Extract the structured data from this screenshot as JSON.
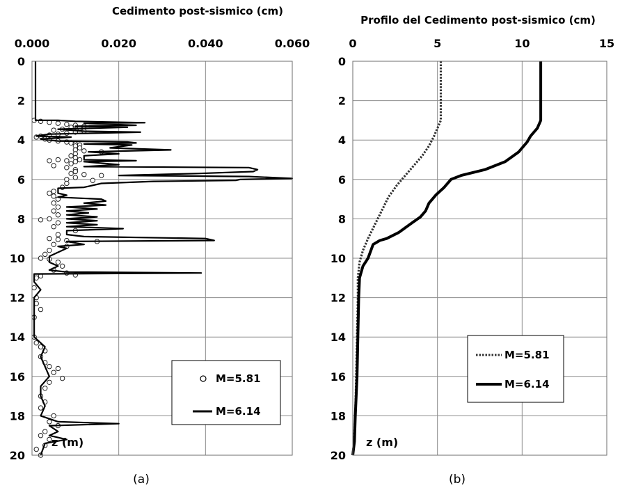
{
  "chart_data": [
    {
      "type": "line",
      "panel_label": "(a)",
      "title": "Cedimento post-sismico (cm)",
      "xlabel": "Cedimento post-sismico (cm)",
      "ylabel": "z (m)",
      "xlim": [
        0,
        0.06
      ],
      "ylim": [
        0,
        20
      ],
      "y_inverted": true,
      "x_axis_position": "top",
      "grid": true,
      "legend_position": "bottom-right",
      "x_ticks": [
        "0.000",
        "0.020",
        "0.040",
        "0.060"
      ],
      "y_ticks": [
        "0",
        "2",
        "4",
        "6",
        "8",
        "10",
        "12",
        "14",
        "16",
        "18",
        "20"
      ],
      "legend": [
        "M=5.81",
        "M=6.14"
      ],
      "series": [
        {
          "name": "M=5.81",
          "style": "markers",
          "points": [
            [
              0.0005,
              3.0
            ],
            [
              0.002,
              3.05
            ],
            [
              0.004,
              3.1
            ],
            [
              0.006,
              3.15
            ],
            [
              0.008,
              3.2
            ],
            [
              0.01,
              3.25
            ],
            [
              0.012,
              3.3
            ],
            [
              0.009,
              3.35
            ],
            [
              0.011,
              3.4
            ],
            [
              0.007,
              3.45
            ],
            [
              0.005,
              3.5
            ],
            [
              0.012,
              3.55
            ],
            [
              0.01,
              3.6
            ],
            [
              0.008,
              3.65
            ],
            [
              0.006,
              3.7
            ],
            [
              0.004,
              3.75
            ],
            [
              0.002,
              3.8
            ],
            [
              0.001,
              3.85
            ],
            [
              0.003,
              3.95
            ],
            [
              0.004,
              4.0
            ],
            [
              0.006,
              4.05
            ],
            [
              0.008,
              4.1
            ],
            [
              0.009,
              4.15
            ],
            [
              0.01,
              4.2
            ],
            [
              0.011,
              4.25
            ],
            [
              0.01,
              4.3
            ],
            [
              0.011,
              4.4
            ],
            [
              0.01,
              4.5
            ],
            [
              0.012,
              4.55
            ],
            [
              0.016,
              4.6
            ],
            [
              0.01,
              4.7
            ],
            [
              0.009,
              4.8
            ],
            [
              0.01,
              4.9
            ],
            [
              0.011,
              5.0
            ],
            [
              0.008,
              5.05
            ],
            [
              0.01,
              5.1
            ],
            [
              0.009,
              5.2
            ],
            [
              0.006,
              5.0
            ],
            [
              0.004,
              5.05
            ],
            [
              0.005,
              5.3
            ],
            [
              0.008,
              5.4
            ],
            [
              0.01,
              5.5
            ],
            [
              0.01,
              5.6
            ],
            [
              0.009,
              5.7
            ],
            [
              0.012,
              5.75
            ],
            [
              0.016,
              5.8
            ],
            [
              0.01,
              5.9
            ],
            [
              0.008,
              6.0
            ],
            [
              0.014,
              6.05
            ],
            [
              0.008,
              6.2
            ],
            [
              0.007,
              6.4
            ],
            [
              0.005,
              6.6
            ],
            [
              0.004,
              6.7
            ],
            [
              0.005,
              6.85
            ],
            [
              0.006,
              7.0
            ],
            [
              0.005,
              7.2
            ],
            [
              0.006,
              7.4
            ],
            [
              0.005,
              7.6
            ],
            [
              0.006,
              7.8
            ],
            [
              0.004,
              8.0
            ],
            [
              0.002,
              8.05
            ],
            [
              0.006,
              8.2
            ],
            [
              0.005,
              8.4
            ],
            [
              0.01,
              8.6
            ],
            [
              0.006,
              8.8
            ],
            [
              0.004,
              9.0
            ],
            [
              0.006,
              9.05
            ],
            [
              0.008,
              9.1
            ],
            [
              0.015,
              9.15
            ],
            [
              0.005,
              9.3
            ],
            [
              0.008,
              9.4
            ],
            [
              0.004,
              9.6
            ],
            [
              0.003,
              9.8
            ],
            [
              0.002,
              10.0
            ],
            [
              0.004,
              10.05
            ],
            [
              0.006,
              10.2
            ],
            [
              0.007,
              10.4
            ],
            [
              0.005,
              10.6
            ],
            [
              0.008,
              10.75
            ],
            [
              0.01,
              10.85
            ],
            [
              0.002,
              10.9
            ],
            [
              0.001,
              11.0
            ],
            [
              0.0005,
              11.5
            ],
            [
              0.001,
              12.0
            ],
            [
              0.001,
              12.3
            ],
            [
              0.002,
              12.6
            ],
            [
              0.0005,
              13.0
            ],
            [
              0.0005,
              14.0
            ],
            [
              0.001,
              14.3
            ],
            [
              0.002,
              14.5
            ],
            [
              0.003,
              14.7
            ],
            [
              0.002,
              15.0
            ],
            [
              0.003,
              15.3
            ],
            [
              0.004,
              15.5
            ],
            [
              0.006,
              15.6
            ],
            [
              0.005,
              15.8
            ],
            [
              0.007,
              16.1
            ],
            [
              0.004,
              16.3
            ],
            [
              0.003,
              16.6
            ],
            [
              0.002,
              17.0
            ],
            [
              0.003,
              17.3
            ],
            [
              0.002,
              17.6
            ],
            [
              0.005,
              18.0
            ],
            [
              0.004,
              18.3
            ],
            [
              0.006,
              18.5
            ],
            [
              0.003,
              18.8
            ],
            [
              0.002,
              19.0
            ],
            [
              0.004,
              19.2
            ],
            [
              0.003,
              19.5
            ],
            [
              0.001,
              19.7
            ],
            [
              0.002,
              20.0
            ]
          ]
        },
        {
          "name": "M=6.14",
          "style": "line",
          "points": [
            [
              0.0008,
              0
            ],
            [
              0.0008,
              3.0
            ],
            [
              0.006,
              3.0
            ],
            [
              0.01,
              3.05
            ],
            [
              0.026,
              3.12
            ],
            [
              0.012,
              3.15
            ],
            [
              0.024,
              3.25
            ],
            [
              0.01,
              3.3
            ],
            [
              0.022,
              3.35
            ],
            [
              0.006,
              3.45
            ],
            [
              0.012,
              3.55
            ],
            [
              0.025,
              3.6
            ],
            [
              0.004,
              3.7
            ],
            [
              0.001,
              3.8
            ],
            [
              0.009,
              3.85
            ],
            [
              0.002,
              3.95
            ],
            [
              0.006,
              4.05
            ],
            [
              0.022,
              4.1
            ],
            [
              0.024,
              4.15
            ],
            [
              0.012,
              4.2
            ],
            [
              0.023,
              4.25
            ],
            [
              0.018,
              4.4
            ],
            [
              0.032,
              4.5
            ],
            [
              0.013,
              4.6
            ],
            [
              0.02,
              4.7
            ],
            [
              0.012,
              4.8
            ],
            [
              0.012,
              5.0
            ],
            [
              0.024,
              5.05
            ],
            [
              0.012,
              5.1
            ],
            [
              0.02,
              5.25
            ],
            [
              0.012,
              5.35
            ],
            [
              0.05,
              5.4
            ],
            [
              0.052,
              5.5
            ],
            [
              0.051,
              5.6
            ],
            [
              0.038,
              5.7
            ],
            [
              0.02,
              5.8
            ],
            [
              0.05,
              5.85
            ],
            [
              0.06,
              5.95
            ],
            [
              0.048,
              6.0
            ],
            [
              0.047,
              6.05
            ],
            [
              0.028,
              6.1
            ],
            [
              0.016,
              6.2
            ],
            [
              0.012,
              6.4
            ],
            [
              0.006,
              6.45
            ],
            [
              0.006,
              6.7
            ],
            [
              0.008,
              6.8
            ],
            [
              0.006,
              6.9
            ],
            [
              0.016,
              7.0
            ],
            [
              0.017,
              7.1
            ],
            [
              0.012,
              7.2
            ],
            [
              0.017,
              7.3
            ],
            [
              0.008,
              7.4
            ],
            [
              0.015,
              7.5
            ],
            [
              0.008,
              7.6
            ],
            [
              0.013,
              7.7
            ],
            [
              0.008,
              7.8
            ],
            [
              0.015,
              7.9
            ],
            [
              0.008,
              8.0
            ],
            [
              0.015,
              8.1
            ],
            [
              0.008,
              8.2
            ],
            [
              0.015,
              8.3
            ],
            [
              0.008,
              8.4
            ],
            [
              0.021,
              8.5
            ],
            [
              0.008,
              8.6
            ],
            [
              0.008,
              8.8
            ],
            [
              0.012,
              8.9
            ],
            [
              0.04,
              9.0
            ],
            [
              0.042,
              9.1
            ],
            [
              0.008,
              9.15
            ],
            [
              0.012,
              9.3
            ],
            [
              0.006,
              9.4
            ],
            [
              0.008,
              9.5
            ],
            [
              0.006,
              9.7
            ],
            [
              0.004,
              9.9
            ],
            [
              0.004,
              10.2
            ],
            [
              0.006,
              10.4
            ],
            [
              0.004,
              10.6
            ],
            [
              0.008,
              10.7
            ],
            [
              0.039,
              10.75
            ],
            [
              0.0005,
              10.8
            ],
            [
              0.0005,
              11.2
            ],
            [
              0.002,
              11.6
            ],
            [
              0.0005,
              12.0
            ],
            [
              0.0005,
              14.0
            ],
            [
              0.003,
              14.5
            ],
            [
              0.002,
              15.0
            ],
            [
              0.003,
              15.5
            ],
            [
              0.004,
              16.0
            ],
            [
              0.002,
              16.5
            ],
            [
              0.002,
              17.0
            ],
            [
              0.003,
              17.5
            ],
            [
              0.002,
              18.0
            ],
            [
              0.006,
              18.3
            ],
            [
              0.02,
              18.4
            ],
            [
              0.004,
              18.5
            ],
            [
              0.006,
              18.8
            ],
            [
              0.004,
              19.0
            ],
            [
              0.008,
              19.2
            ],
            [
              0.003,
              19.4
            ],
            [
              0.002,
              20.0
            ]
          ]
        }
      ]
    },
    {
      "type": "line",
      "panel_label": "(b)",
      "title": "Profilo del Cedimento post-sismico (cm)",
      "xlabel": "Profilo del Cedimento post-sismico (cm)",
      "ylabel": "z (m)",
      "xlim": [
        0,
        15
      ],
      "ylim": [
        0,
        20
      ],
      "y_inverted": true,
      "x_axis_position": "top",
      "grid": true,
      "legend_position": "bottom-right",
      "x_ticks": [
        "0",
        "5",
        "10",
        "15"
      ],
      "y_ticks": [
        "0",
        "2",
        "4",
        "6",
        "8",
        "10",
        "12",
        "14",
        "16",
        "18",
        "20"
      ],
      "legend": [
        "M=5.81",
        "M=6.14"
      ],
      "series": [
        {
          "name": "M=5.81",
          "style": "dotted",
          "points": [
            [
              5.2,
              0
            ],
            [
              5.2,
              3.0
            ],
            [
              5.0,
              3.4
            ],
            [
              4.8,
              3.8
            ],
            [
              4.5,
              4.3
            ],
            [
              4.1,
              4.8
            ],
            [
              3.6,
              5.3
            ],
            [
              3.1,
              5.8
            ],
            [
              2.6,
              6.3
            ],
            [
              2.1,
              6.9
            ],
            [
              1.7,
              7.6
            ],
            [
              1.3,
              8.3
            ],
            [
              0.9,
              9.0
            ],
            [
              0.6,
              9.6
            ],
            [
              0.4,
              10.2
            ],
            [
              0.3,
              11.0
            ],
            [
              0.3,
              12.0
            ],
            [
              0.25,
              14.0
            ],
            [
              0.2,
              16.0
            ],
            [
              0.15,
              18.0
            ],
            [
              0.05,
              19.5
            ],
            [
              0.0,
              20.0
            ]
          ]
        },
        {
          "name": "M=6.14",
          "style": "line",
          "points": [
            [
              11.1,
              0
            ],
            [
              11.1,
              3.0
            ],
            [
              10.9,
              3.4
            ],
            [
              10.5,
              3.8
            ],
            [
              10.3,
              4.1
            ],
            [
              9.8,
              4.6
            ],
            [
              9.0,
              5.1
            ],
            [
              7.8,
              5.5
            ],
            [
              6.4,
              5.8
            ],
            [
              5.8,
              6.0
            ],
            [
              5.4,
              6.4
            ],
            [
              4.9,
              6.8
            ],
            [
              4.5,
              7.2
            ],
            [
              4.3,
              7.6
            ],
            [
              4.0,
              7.9
            ],
            [
              3.5,
              8.2
            ],
            [
              2.7,
              8.7
            ],
            [
              2.0,
              9.0
            ],
            [
              1.6,
              9.1
            ],
            [
              1.2,
              9.3
            ],
            [
              0.9,
              10.0
            ],
            [
              0.6,
              10.4
            ],
            [
              0.4,
              11.0
            ],
            [
              0.35,
              12.0
            ],
            [
              0.3,
              14.0
            ],
            [
              0.25,
              16.0
            ],
            [
              0.15,
              18.0
            ],
            [
              0.1,
              19.3
            ],
            [
              0.0,
              20.0
            ]
          ]
        }
      ]
    }
  ]
}
